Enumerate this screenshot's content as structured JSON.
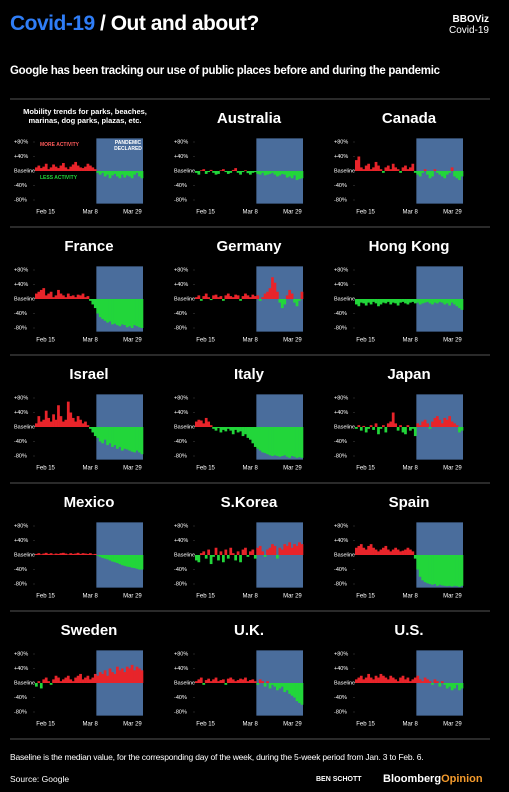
{
  "header": {
    "title_highlight": "Covid-19",
    "title_rest": "/ Out and about?",
    "brand": "BBOViz",
    "brand_sub": "Covid-19",
    "subtitle": "Google has been tracking our use of public places before and during the pandemic"
  },
  "chart_data": {
    "type": "area",
    "categories": [
      "Feb 15",
      null,
      null,
      null,
      null,
      null,
      null,
      null,
      null,
      null,
      null,
      null,
      null,
      null,
      null,
      null,
      null,
      null,
      null,
      null,
      null,
      null,
      "Mar 8",
      null,
      null,
      null,
      null,
      null,
      null,
      null,
      null,
      null,
      null,
      null,
      null,
      null,
      null,
      null,
      null,
      null,
      null,
      null,
      null,
      "Mar 29"
    ],
    "ylim": [
      -90,
      90
    ],
    "yticks": [
      {
        "value": 80,
        "label": "+80%"
      },
      {
        "value": 40,
        "label": "+40%"
      },
      {
        "value": 0,
        "label": "Baseline"
      },
      {
        "value": -40,
        "label": "-40%"
      },
      {
        "value": -80,
        "label": "-80%"
      }
    ],
    "colors": {
      "above": "#e8242a",
      "below": "#22d63a"
    },
    "shade_from": 25,
    "shade_color": "#4a6d9c",
    "caption": "Mobility trends for parks, beaches, marinas, dog parks, plazas, etc.",
    "annotations": {
      "more": "MORE ACTIVITY",
      "less": "LESS ACTIVITY",
      "pandemic": "PANDEMIC DECLARED"
    },
    "panels": [
      {
        "values": [
          10,
          15,
          8,
          12,
          20,
          5,
          10,
          18,
          12,
          8,
          15,
          22,
          10,
          5,
          12,
          18,
          25,
          15,
          10,
          8,
          12,
          20,
          15,
          10,
          5,
          -5,
          -10,
          -5,
          -15,
          -10,
          -20,
          -12,
          -8,
          -15,
          -20,
          -10,
          -18,
          -12,
          -15,
          -20,
          -10,
          -5,
          -15,
          -20
        ]
      },
      {
        "title": "Australia",
        "values": [
          -5,
          -10,
          2,
          5,
          -8,
          -3,
          3,
          -5,
          -10,
          -8,
          2,
          5,
          -3,
          -8,
          -5,
          3,
          8,
          -5,
          -10,
          -3,
          2,
          -6,
          -10,
          -5,
          -3,
          -8,
          -10,
          -5,
          -12,
          -10,
          -8,
          -5,
          -10,
          -15,
          -12,
          -8,
          -10,
          -18,
          -15,
          -20,
          -12,
          -25,
          -22,
          -20
        ]
      },
      {
        "title": "Canada",
        "values": [
          30,
          40,
          10,
          5,
          15,
          20,
          5,
          10,
          25,
          15,
          5,
          -5,
          10,
          15,
          5,
          20,
          10,
          5,
          -5,
          10,
          15,
          5,
          10,
          20,
          -5,
          -10,
          -15,
          -5,
          5,
          -10,
          -20,
          -15,
          5,
          -5,
          -10,
          -15,
          -20,
          -10,
          -5,
          10,
          -15,
          -20,
          -25,
          -15
        ]
      },
      {
        "title": "France",
        "values": [
          15,
          20,
          25,
          30,
          10,
          15,
          20,
          5,
          10,
          25,
          15,
          10,
          5,
          15,
          8,
          10,
          5,
          12,
          10,
          15,
          5,
          8,
          -5,
          -15,
          -25,
          -40,
          -50,
          -55,
          -60,
          -65,
          -62,
          -70,
          -68,
          -72,
          -75,
          -70,
          -72,
          -78,
          -75,
          -80,
          -72,
          -75,
          -78,
          -80
        ]
      },
      {
        "title": "Germany",
        "values": [
          5,
          10,
          -5,
          8,
          15,
          5,
          -3,
          10,
          12,
          5,
          8,
          -5,
          10,
          15,
          8,
          5,
          12,
          10,
          -5,
          8,
          15,
          10,
          5,
          12,
          8,
          10,
          -5,
          5,
          15,
          20,
          30,
          60,
          45,
          20,
          -10,
          -25,
          -15,
          10,
          25,
          15,
          -10,
          -20,
          -5,
          20
        ]
      },
      {
        "title": "Hong Kong",
        "values": [
          -15,
          -20,
          -10,
          -12,
          -18,
          -10,
          -15,
          -8,
          -12,
          -20,
          -15,
          -10,
          -12,
          -8,
          -15,
          -10,
          -12,
          -18,
          -10,
          -8,
          -12,
          -15,
          -10,
          -8,
          -12,
          -10,
          -15,
          -12,
          -10,
          -8,
          -12,
          -15,
          -10,
          -12,
          -8,
          -10,
          -15,
          -12,
          -18,
          -10,
          -15,
          -20,
          -25,
          -30
        ]
      },
      {
        "title": "Israel",
        "values": [
          10,
          30,
          15,
          20,
          45,
          25,
          15,
          35,
          20,
          60,
          30,
          15,
          20,
          70,
          40,
          25,
          15,
          30,
          20,
          10,
          15,
          5,
          -5,
          -15,
          -25,
          -30,
          -40,
          -45,
          -35,
          -50,
          -45,
          -55,
          -50,
          -60,
          -55,
          -65,
          -60,
          -62,
          -65,
          -68,
          -70,
          -65,
          -70,
          -75
        ]
      },
      {
        "title": "Italy",
        "values": [
          15,
          20,
          18,
          10,
          25,
          15,
          5,
          -5,
          -10,
          -3,
          -15,
          -8,
          -12,
          -5,
          -10,
          -20,
          -8,
          -15,
          -12,
          -25,
          -20,
          -30,
          -35,
          -45,
          -55,
          -60,
          -65,
          -70,
          -72,
          -75,
          -78,
          -80,
          -78,
          -80,
          -82,
          -80,
          -78,
          -82,
          -85,
          -80,
          -82,
          -85,
          -83,
          -85
        ]
      },
      {
        "title": "Japan",
        "values": [
          -5,
          5,
          -10,
          3,
          -15,
          -5,
          5,
          -8,
          10,
          -20,
          -5,
          5,
          -15,
          10,
          15,
          40,
          10,
          -10,
          5,
          -15,
          -20,
          5,
          -10,
          -5,
          -25,
          10,
          5,
          15,
          20,
          10,
          -5,
          15,
          25,
          30,
          20,
          10,
          25,
          20,
          30,
          15,
          10,
          5,
          -15,
          -10
        ]
      },
      {
        "title": "Mexico",
        "values": [
          3,
          5,
          2,
          4,
          6,
          3,
          5,
          2,
          4,
          3,
          5,
          6,
          4,
          2,
          5,
          3,
          4,
          6,
          3,
          5,
          4,
          3,
          5,
          2,
          3,
          -2,
          -5,
          -8,
          -10,
          -12,
          -15,
          -18,
          -20,
          -22,
          -25,
          -28,
          -30,
          -32,
          -33,
          -35,
          -36,
          -38,
          -40,
          -40
        ]
      },
      {
        "title": "S.Korea",
        "values": [
          -15,
          -20,
          5,
          10,
          -10,
          15,
          -25,
          -5,
          20,
          -15,
          10,
          -20,
          15,
          -10,
          20,
          5,
          -15,
          10,
          -20,
          15,
          20,
          -5,
          10,
          15,
          -10,
          20,
          25,
          10,
          -5,
          15,
          20,
          30,
          25,
          -10,
          20,
          15,
          30,
          25,
          35,
          20,
          30,
          25,
          35,
          30
        ]
      },
      {
        "title": "Spain",
        "values": [
          20,
          25,
          30,
          20,
          15,
          25,
          30,
          20,
          15,
          10,
          15,
          20,
          25,
          15,
          10,
          15,
          20,
          15,
          10,
          12,
          15,
          20,
          15,
          10,
          -10,
          -40,
          -60,
          -70,
          -75,
          -78,
          -80,
          -82,
          -80,
          -85,
          -82,
          -84,
          -85,
          -86,
          -85,
          -87,
          -85,
          -86,
          -88,
          -85
        ]
      },
      {
        "title": "Sweden",
        "values": [
          -10,
          5,
          -15,
          10,
          15,
          5,
          -5,
          10,
          20,
          15,
          5,
          10,
          15,
          20,
          10,
          5,
          15,
          20,
          25,
          10,
          15,
          20,
          10,
          15,
          25,
          20,
          30,
          25,
          35,
          20,
          40,
          30,
          25,
          45,
          35,
          40,
          30,
          45,
          40,
          50,
          35,
          45,
          40,
          35
        ]
      },
      {
        "title": "U.K.",
        "values": [
          5,
          10,
          15,
          -5,
          8,
          12,
          5,
          10,
          15,
          5,
          8,
          10,
          -5,
          12,
          15,
          10,
          5,
          8,
          12,
          10,
          15,
          5,
          8,
          10,
          5,
          -5,
          10,
          5,
          -10,
          5,
          -15,
          -5,
          -10,
          -20,
          -15,
          -10,
          -25,
          -20,
          -30,
          -35,
          -40,
          -50,
          -55,
          -60
        ]
      },
      {
        "title": "U.S.",
        "values": [
          10,
          15,
          20,
          10,
          15,
          25,
          15,
          10,
          20,
          15,
          25,
          20,
          15,
          10,
          20,
          15,
          10,
          5,
          15,
          20,
          10,
          15,
          5,
          10,
          15,
          20,
          10,
          5,
          15,
          10,
          5,
          -5,
          10,
          5,
          -10,
          5,
          -5,
          -15,
          -10,
          -20,
          -15,
          -5,
          -20,
          -15
        ]
      }
    ]
  },
  "footer": {
    "note": "Baseline is the median value, for the corresponding day of the week, during the 5-week period from Jan. 3 to Feb. 6.",
    "source": "Source: Google",
    "author": "BEN SCHOTT",
    "brand": "Bloomberg",
    "brand_bold": "Opinion"
  }
}
